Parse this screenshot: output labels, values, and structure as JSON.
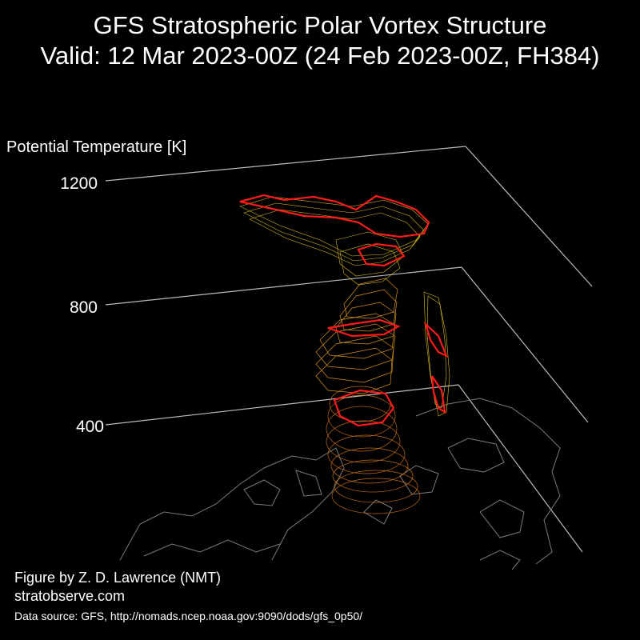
{
  "title_line1": "GFS Stratospheric Polar Vortex Structure",
  "title_line2": "Valid: 12 Mar 2023-00Z  (24 Feb 2023-00Z, FH384)",
  "axis": {
    "label": "Potential Temperature [K]",
    "ticks": [
      "1200",
      "800",
      "400"
    ]
  },
  "credits": {
    "author": "Figure by Z. D. Lawrence (NMT)",
    "site": "stratobserve.com",
    "source": "Data source: GFS, http://nomads.ncep.noaa.gov:9090/dods/gfs_0p50/"
  },
  "colors": {
    "background": "#000000",
    "axis_lines": "#bbbbbb",
    "coastline": "#7a7a7a",
    "edge_contour": "#ff1a1a",
    "upper_layers": "#f2d21e",
    "lower_layers": "#d2741a"
  }
}
